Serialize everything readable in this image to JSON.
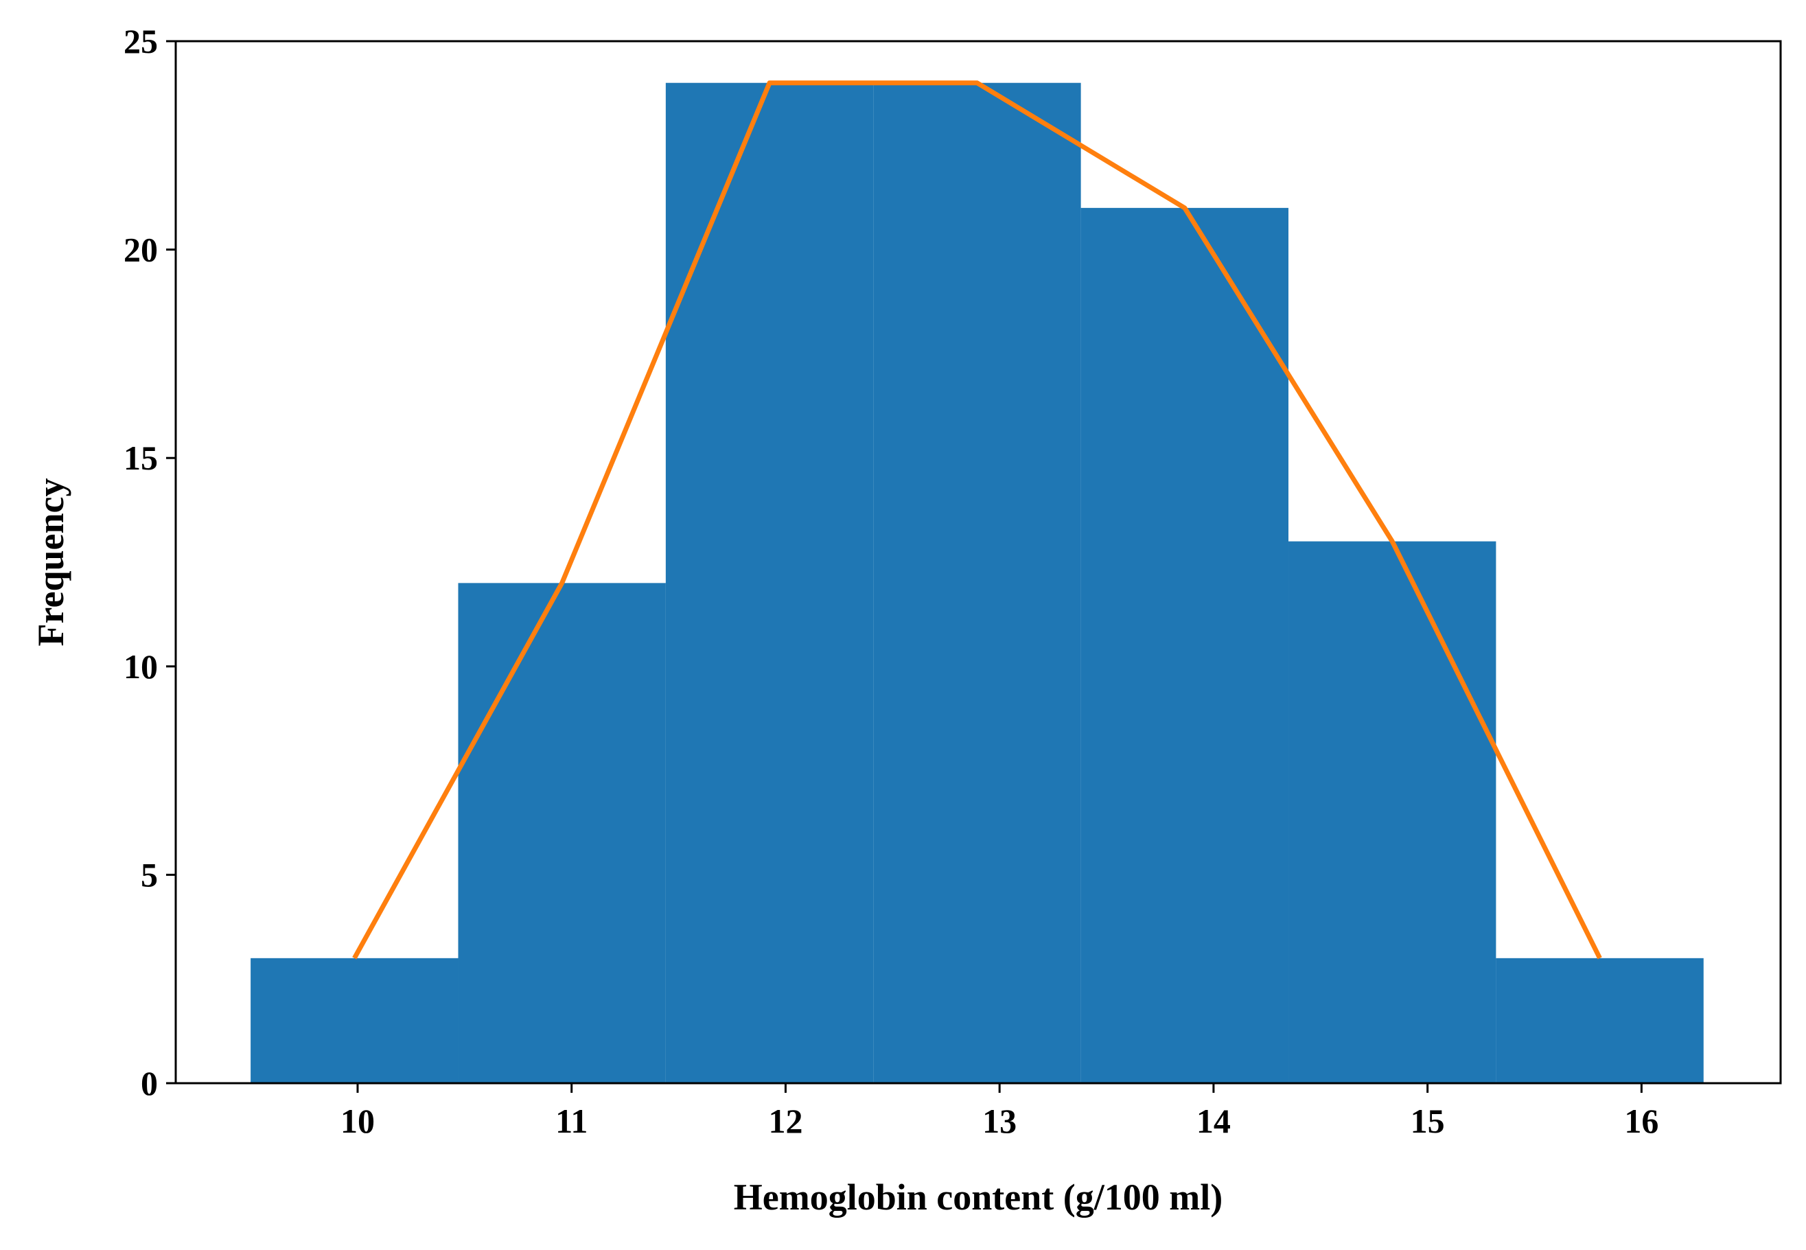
{
  "chart_data": {
    "type": "bar",
    "title": "",
    "xlabel": "Hemoglobin content (g/100 ml)",
    "ylabel": "Frequency",
    "xlim": [
      9.15,
      16.65
    ],
    "ylim": [
      0,
      25
    ],
    "xticks": [
      10,
      11,
      12,
      13,
      14,
      15,
      16
    ],
    "yticks": [
      0,
      5,
      10,
      15,
      20,
      25
    ],
    "grid": false,
    "legend": "none",
    "bins": [
      {
        "start": 9.5,
        "end": 10.47,
        "count": 3
      },
      {
        "start": 10.47,
        "end": 11.44,
        "count": 12
      },
      {
        "start": 11.44,
        "end": 12.41,
        "count": 24
      },
      {
        "start": 12.41,
        "end": 13.38,
        "count": 24
      },
      {
        "start": 13.38,
        "end": 14.35,
        "count": 21
      },
      {
        "start": 14.35,
        "end": 15.32,
        "count": 13
      },
      {
        "start": 15.32,
        "end": 16.29,
        "count": 3
      }
    ],
    "polygon": {
      "x": [
        9.985,
        10.955,
        11.925,
        12.895,
        13.865,
        14.835,
        15.805
      ],
      "y": [
        3,
        12,
        24,
        24,
        21,
        13,
        3
      ]
    },
    "colors": {
      "bars": "#1f77b4",
      "polygon": "#ff7f0e",
      "axes": "#000000"
    }
  }
}
